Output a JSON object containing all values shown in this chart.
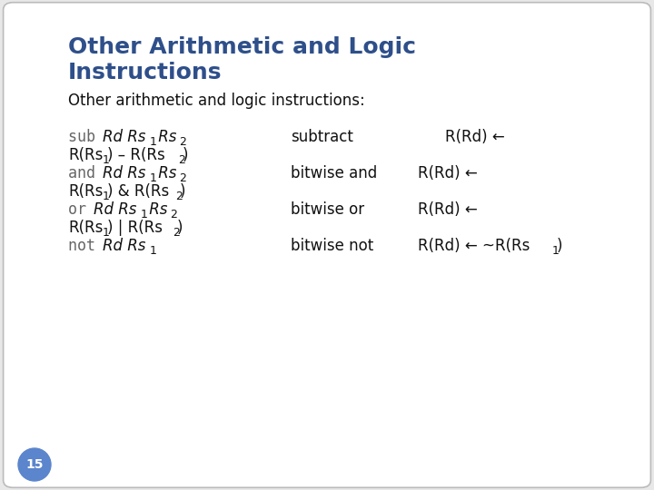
{
  "title_line1": "Other Arithmetic and Logic",
  "title_line2": "Instructions",
  "title_color": "#2E4F8A",
  "subtitle": "Other arithmetic and logic instructions:",
  "subtitle_color": "#111111",
  "bg_color": "#E8E8E8",
  "slide_bg": "#FFFFFF",
  "page_number": "15",
  "page_number_bg": "#5B85CC",
  "page_number_color": "#FFFFFF",
  "title_fontsize": 18,
  "subtitle_fontsize": 12,
  "body_fontsize": 12,
  "sub_fontsize": 9
}
